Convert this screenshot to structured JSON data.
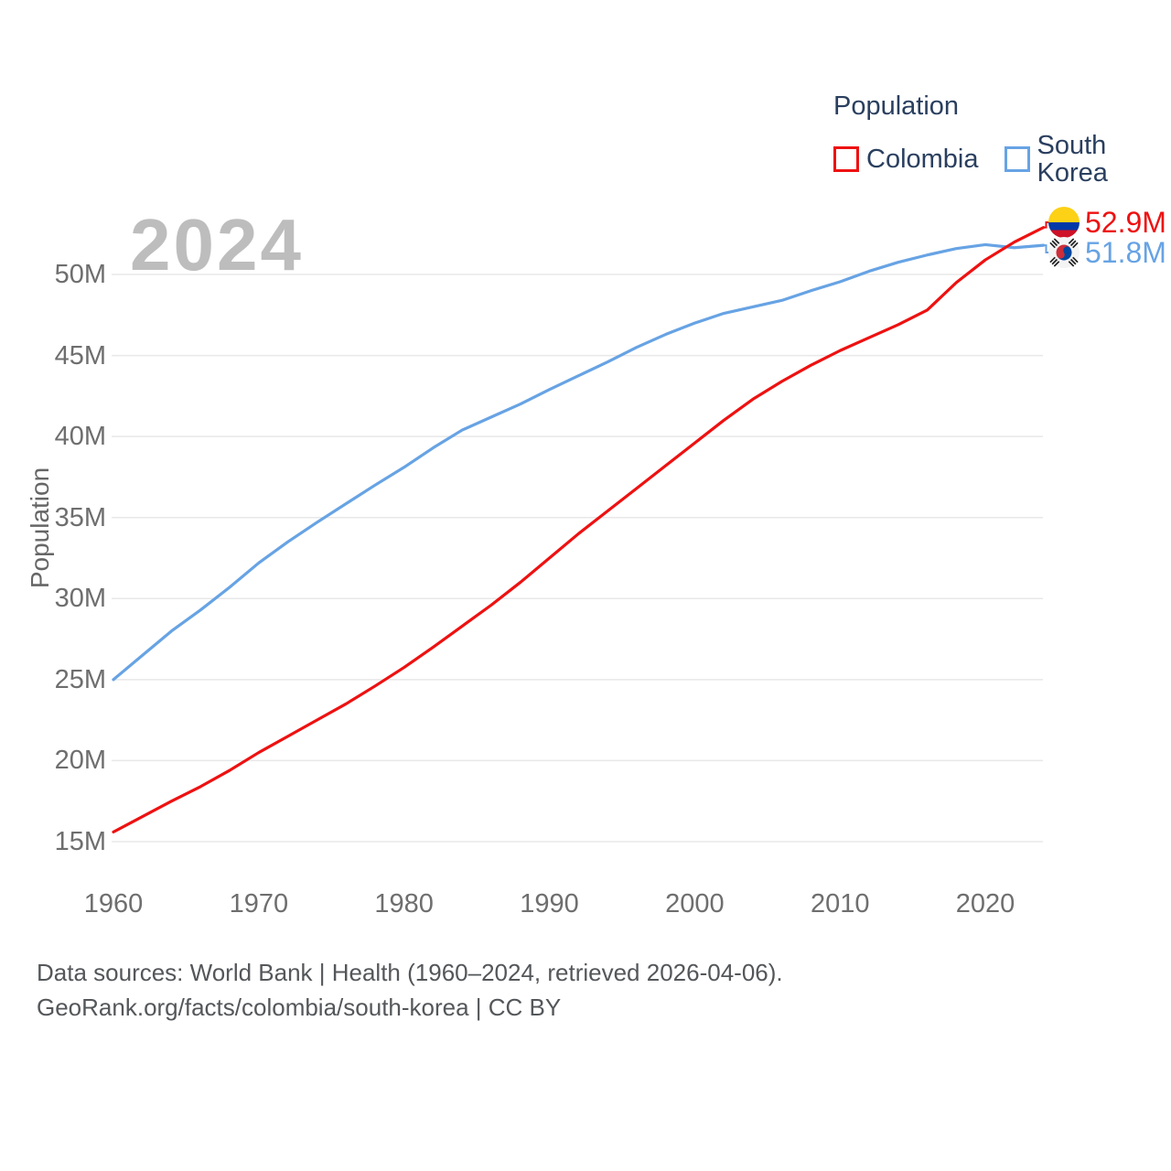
{
  "watermark": "2024",
  "legend": {
    "title": "Population",
    "items": [
      {
        "label": "Colombia",
        "color": "#ee1111"
      },
      {
        "label": "South Korea",
        "color": "#67a3e4"
      }
    ]
  },
  "end_labels": [
    {
      "country": "Colombia",
      "flag": "colombia-flag",
      "value": "52.9M",
      "color": "#ee1111"
    },
    {
      "country": "South Korea",
      "flag": "south-korea-flag",
      "value": "51.8M",
      "color": "#67a3e4"
    }
  ],
  "source": {
    "line1": "Data sources: World Bank | Health (1960–2024, retrieved 2026-04-06).",
    "line2": "GeoRank.org/facts/colombia/south-korea | CC BY"
  },
  "colors": {
    "colombia_line": "#ee1111",
    "south_korea_line": "#67a3e4",
    "gridline": "#e8e8e8",
    "tick_text": "#6e6e6e",
    "legend_text": "#2a3f5f",
    "watermark_text": "#bdbdbd",
    "source_text": "#54575a"
  },
  "chart_data": {
    "type": "line",
    "title": "Population",
    "xlabel": "",
    "ylabel": "Population",
    "unit": "millions of people",
    "xlim": [
      1960,
      2024
    ],
    "ylim": [
      13.5,
      53.5
    ],
    "grid": "horizontal",
    "legend_position": "top-right",
    "x": [
      1960,
      1962,
      1964,
      1966,
      1968,
      1970,
      1972,
      1974,
      1976,
      1978,
      1980,
      1982,
      1984,
      1986,
      1988,
      1990,
      1992,
      1994,
      1996,
      1998,
      2000,
      2002,
      2004,
      2006,
      2008,
      2010,
      2012,
      2014,
      2016,
      2018,
      2020,
      2022,
      2024
    ],
    "series": [
      {
        "name": "Colombia",
        "color": "#ee1111",
        "end_label": "52.9M",
        "values": [
          15.6,
          16.55,
          17.5,
          18.4,
          19.4,
          20.5,
          21.5,
          22.5,
          23.5,
          24.6,
          25.75,
          27.0,
          28.3,
          29.6,
          31.0,
          32.5,
          34.0,
          35.4,
          36.8,
          38.2,
          39.6,
          41.0,
          42.3,
          43.4,
          44.4,
          45.3,
          46.1,
          46.9,
          47.8,
          49.5,
          50.9,
          52.0,
          52.9
        ]
      },
      {
        "name": "South Korea",
        "color": "#67a3e4",
        "end_label": "51.8M",
        "values": [
          25.0,
          26.5,
          28.0,
          29.3,
          30.7,
          32.2,
          33.5,
          34.7,
          35.85,
          37.0,
          38.1,
          39.3,
          40.4,
          41.2,
          42.0,
          42.9,
          43.75,
          44.6,
          45.5,
          46.3,
          47.0,
          47.6,
          48.0,
          48.4,
          49.0,
          49.55,
          50.2,
          50.75,
          51.2,
          51.6,
          51.84,
          51.65,
          51.8
        ]
      }
    ],
    "x_ticks": [
      1960,
      1970,
      1980,
      1990,
      2000,
      2010,
      2020
    ],
    "y_ticks": [
      {
        "value": 15,
        "label": "15M"
      },
      {
        "value": 20,
        "label": "20M"
      },
      {
        "value": 25,
        "label": "25M"
      },
      {
        "value": 30,
        "label": "30M"
      },
      {
        "value": 35,
        "label": "35M"
      },
      {
        "value": 40,
        "label": "40M"
      },
      {
        "value": 45,
        "label": "45M"
      },
      {
        "value": 50,
        "label": "50M"
      }
    ]
  }
}
